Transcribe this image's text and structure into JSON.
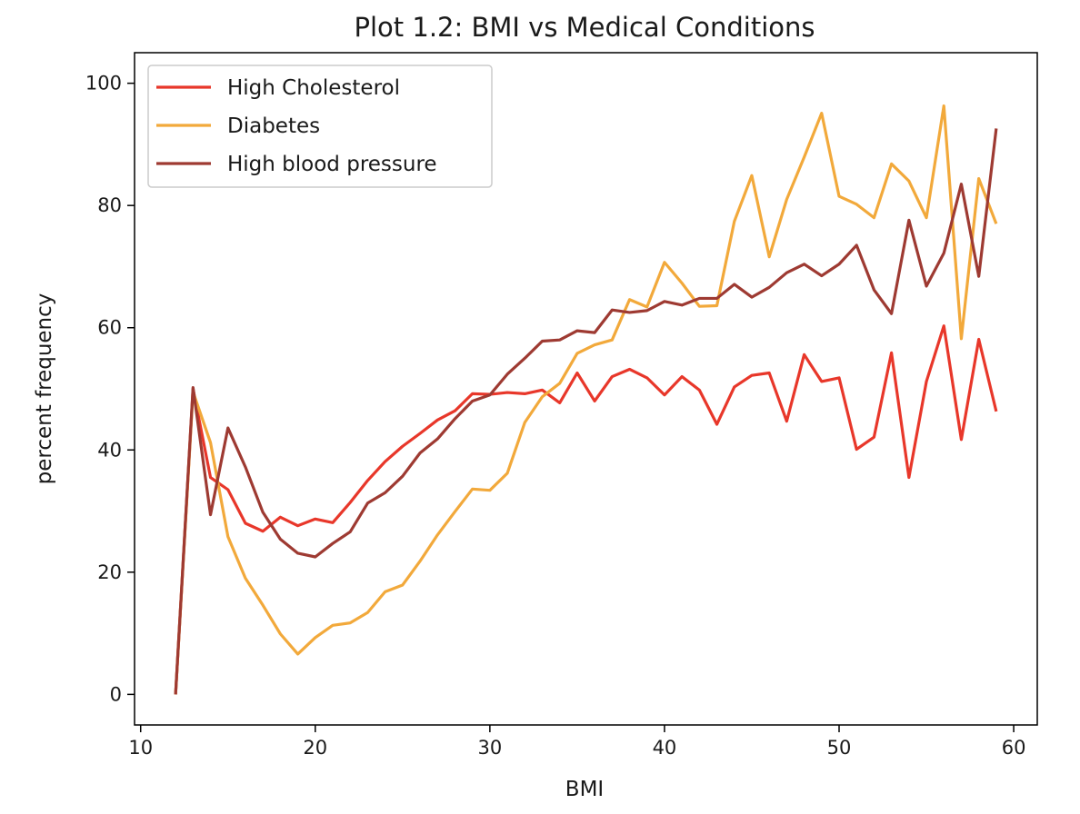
{
  "chart_data": {
    "type": "line",
    "title": "Plot 1.2: BMI vs Medical Conditions",
    "xlabel": "BMI",
    "ylabel": "percent frequency",
    "xlim": [
      9.65,
      61.35
    ],
    "ylim": [
      -5,
      105
    ],
    "xticks": [
      10,
      20,
      30,
      40,
      50,
      60
    ],
    "yticks": [
      0,
      20,
      40,
      60,
      80,
      100
    ],
    "grid": false,
    "legend_position": "top-left",
    "x": [
      12,
      13,
      14,
      15,
      16,
      17,
      18,
      19,
      20,
      21,
      22,
      23,
      24,
      25,
      26,
      27,
      28,
      29,
      30,
      31,
      32,
      33,
      34,
      35,
      36,
      37,
      38,
      39,
      40,
      41,
      42,
      43,
      44,
      45,
      46,
      47,
      48,
      49,
      50,
      51,
      52,
      53,
      54,
      55,
      56,
      57,
      58,
      59
    ],
    "series": [
      {
        "name": "High Cholesterol",
        "color": "#e8372a",
        "values": [
          0,
          50,
          35.5,
          33.5,
          28,
          26.7,
          29,
          27.6,
          28.7,
          28.1,
          31.4,
          35,
          38.1,
          40.6,
          42.7,
          44.9,
          46.4,
          49.2,
          49.1,
          49.4,
          49.2,
          49.8,
          47.7,
          52.6,
          48,
          52,
          53.2,
          51.8,
          49,
          52,
          49.8,
          44.2,
          50.3,
          52.2,
          52.6,
          44.7,
          55.6,
          51.2,
          51.8,
          40.1,
          42.1,
          55.9,
          35.5,
          51.2,
          60.3,
          41.7,
          58.1,
          46.3
        ]
      },
      {
        "name": "Diabetes",
        "color": "#f2a93b",
        "values": [
          0,
          49.5,
          41.2,
          25.8,
          19,
          14.6,
          9.9,
          6.6,
          9.3,
          11.3,
          11.7,
          13.4,
          16.8,
          17.9,
          21.8,
          26.1,
          29.9,
          33.6,
          33.4,
          36.2,
          44.5,
          48.7,
          50.9,
          55.8,
          57.2,
          58,
          64.6,
          63.4,
          70.7,
          67.3,
          63.5,
          63.6,
          77.4,
          84.9,
          71.6,
          81,
          87.9,
          95.1,
          81.5,
          80.2,
          78,
          86.8,
          84,
          78,
          96.3,
          58.2,
          84.4,
          77
        ]
      },
      {
        "name": "High blood pressure",
        "color": "#9e3a32",
        "values": [
          0,
          50.2,
          29.4,
          43.6,
          37.2,
          29.8,
          25.4,
          23.1,
          22.5,
          24.7,
          26.6,
          31.3,
          33,
          35.7,
          39.5,
          41.8,
          45.1,
          48,
          49,
          52.4,
          55,
          57.8,
          58,
          59.5,
          59.2,
          62.9,
          62.5,
          62.8,
          64.3,
          63.7,
          64.8,
          64.8,
          67.1,
          65,
          66.6,
          69,
          70.4,
          68.5,
          70.4,
          73.5,
          66.2,
          62.3,
          77.6,
          66.8,
          72.2,
          83.5,
          68.4,
          92.6
        ]
      }
    ]
  }
}
